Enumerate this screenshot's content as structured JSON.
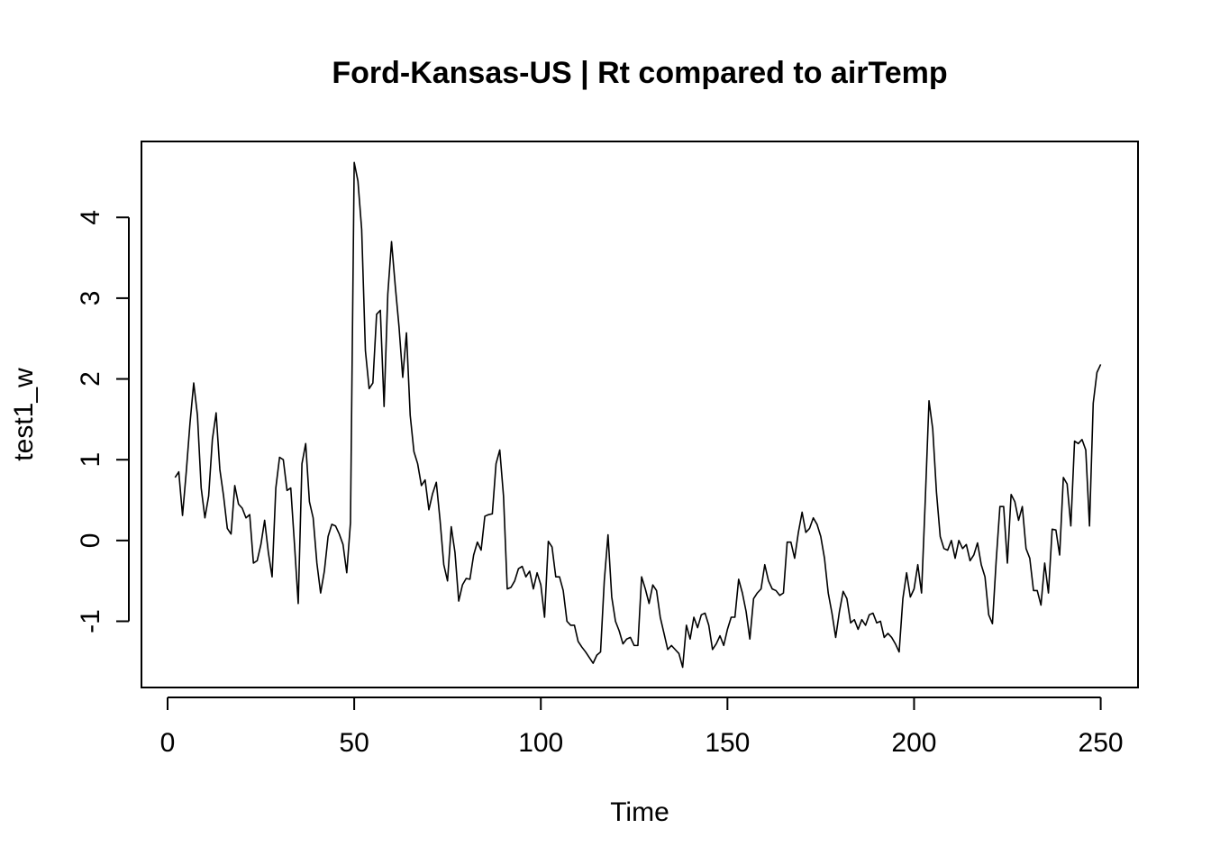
{
  "chart_data": {
    "type": "line",
    "title": "Ford-Kansas-US | Rt compared to airTemp",
    "xlabel": "Time",
    "ylabel": "test1_w",
    "xlim": [
      -7,
      260
    ],
    "ylim": [
      -1.82,
      4.94
    ],
    "x_ticks": [
      0,
      50,
      100,
      150,
      200,
      250
    ],
    "y_ticks": [
      -1,
      0,
      1,
      2,
      3,
      4
    ],
    "grid": false,
    "legend": "none",
    "line_color": "#000000",
    "x_start": 2,
    "series": [
      {
        "values": [
          0.78,
          0.85,
          0.31,
          0.85,
          1.45,
          1.95,
          1.55,
          0.65,
          0.28,
          0.55,
          1.25,
          1.58,
          0.88,
          0.55,
          0.15,
          0.08,
          0.68,
          0.45,
          0.4,
          0.28,
          0.32,
          -0.28,
          -0.25,
          -0.05,
          0.25,
          -0.15,
          -0.45,
          0.65,
          1.03,
          1.0,
          0.62,
          0.65,
          -0.05,
          -0.78,
          0.95,
          1.2,
          0.48,
          0.28,
          -0.28,
          -0.65,
          -0.38,
          0.05,
          0.2,
          0.18,
          0.08,
          -0.05,
          -0.4,
          0.22,
          4.68,
          4.45,
          3.85,
          2.35,
          1.88,
          1.95,
          2.8,
          2.85,
          1.66,
          3.05,
          3.7,
          3.15,
          2.65,
          2.02,
          2.57,
          1.55,
          1.1,
          0.95,
          0.68,
          0.75,
          0.38,
          0.58,
          0.72,
          0.25,
          -0.3,
          -0.5,
          0.17,
          -0.15,
          -0.75,
          -0.55,
          -0.47,
          -0.48,
          -0.18,
          -0.02,
          -0.12,
          0.3,
          0.32,
          0.33,
          0.95,
          1.12,
          0.55,
          -0.6,
          -0.58,
          -0.5,
          -0.35,
          -0.32,
          -0.45,
          -0.38,
          -0.6,
          -0.4,
          -0.55,
          -0.95,
          -0.01,
          -0.08,
          -0.45,
          -0.45,
          -0.62,
          -1.0,
          -1.05,
          -1.05,
          -1.25,
          -1.32,
          -1.38,
          -1.45,
          -1.52,
          -1.42,
          -1.38,
          -0.5,
          0.07,
          -0.7,
          -1.0,
          -1.12,
          -1.28,
          -1.22,
          -1.2,
          -1.3,
          -1.3,
          -0.45,
          -0.6,
          -0.78,
          -0.55,
          -0.62,
          -0.95,
          -1.15,
          -1.35,
          -1.3,
          -1.35,
          -1.4,
          -1.57,
          -1.05,
          -1.22,
          -0.95,
          -1.08,
          -0.92,
          -0.9,
          -1.05,
          -1.35,
          -1.28,
          -1.18,
          -1.3,
          -1.1,
          -0.95,
          -0.95,
          -0.48,
          -0.65,
          -0.88,
          -1.22,
          -0.72,
          -0.65,
          -0.6,
          -0.3,
          -0.5,
          -0.6,
          -0.62,
          -0.68,
          -0.65,
          -0.02,
          -0.02,
          -0.22,
          0.1,
          0.35,
          0.1,
          0.15,
          0.28,
          0.2,
          0.05,
          -0.22,
          -0.65,
          -0.9,
          -1.2,
          -0.88,
          -0.63,
          -0.72,
          -1.02,
          -0.98,
          -1.1,
          -0.98,
          -1.05,
          -0.92,
          -0.9,
          -1.02,
          -1.0,
          -1.2,
          -1.15,
          -1.2,
          -1.28,
          -1.38,
          -0.72,
          -0.4,
          -0.7,
          -0.6,
          -0.3,
          -0.65,
          0.5,
          1.73,
          1.38,
          0.6,
          0.05,
          -0.1,
          -0.12,
          0.0,
          -0.22,
          0.0,
          -0.1,
          -0.05,
          -0.25,
          -0.18,
          -0.03,
          -0.3,
          -0.45,
          -0.92,
          -1.03,
          -0.25,
          0.42,
          0.42,
          -0.28,
          0.57,
          0.48,
          0.25,
          0.42,
          -0.1,
          -0.22,
          -0.62,
          -0.62,
          -0.8,
          -0.28,
          -0.65,
          0.14,
          0.13,
          -0.18,
          0.78,
          0.7,
          0.18,
          1.23,
          1.2,
          1.25,
          1.12,
          0.18,
          1.7,
          2.08,
          2.18
        ]
      }
    ]
  }
}
